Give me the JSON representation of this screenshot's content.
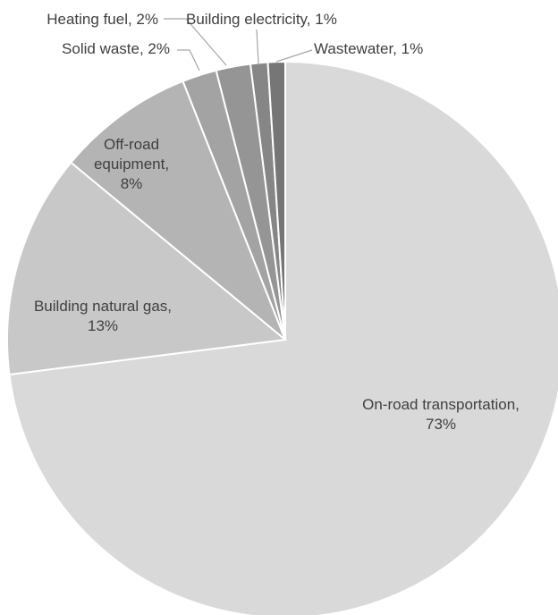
{
  "chart_data": {
    "type": "pie",
    "title": "",
    "slices": [
      {
        "label": "On-road transportation",
        "value": 73,
        "value_label": "73%",
        "color": "#d9d9d9"
      },
      {
        "label": "Building natural gas",
        "value": 13,
        "value_label": "13%",
        "color": "#c8c8c8"
      },
      {
        "label": "Off-road equipment",
        "value": 8,
        "value_label": "8%",
        "color": "#b4b4b4"
      },
      {
        "label": "Solid waste",
        "value": 2,
        "value_label": "2%",
        "color": "#a3a3a3"
      },
      {
        "label": "Heating fuel",
        "value": 2,
        "value_label": "2%",
        "color": "#959595"
      },
      {
        "label": "Building electricity",
        "value": 1,
        "value_label": "1%",
        "color": "#868686"
      },
      {
        "label": "Wastewater",
        "value": 1,
        "value_label": "1%",
        "color": "#767676"
      }
    ],
    "data_labels": [
      {
        "lines": [
          "On-road transportation,",
          "73%"
        ]
      },
      {
        "lines": [
          "Building natural gas,",
          "13%"
        ]
      },
      {
        "lines": [
          "Off-road",
          "equipment,",
          "8%"
        ]
      },
      {
        "lines": [
          "Solid waste, 2%"
        ]
      },
      {
        "lines": [
          "Heating fuel, 2%"
        ]
      },
      {
        "lines": [
          "Building electricity, 1%"
        ]
      },
      {
        "lines": [
          "Wastewater, 1%"
        ]
      }
    ],
    "legend": "none"
  }
}
